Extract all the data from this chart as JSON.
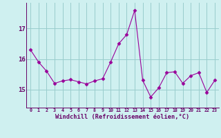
{
  "x": [
    0,
    1,
    2,
    3,
    4,
    5,
    6,
    7,
    8,
    9,
    10,
    11,
    12,
    13,
    14,
    15,
    16,
    17,
    18,
    19,
    20,
    21,
    22,
    23
  ],
  "y": [
    16.3,
    15.9,
    15.6,
    15.2,
    15.28,
    15.32,
    15.25,
    15.18,
    15.28,
    15.35,
    15.9,
    16.5,
    16.8,
    17.6,
    15.3,
    14.75,
    15.05,
    15.55,
    15.58,
    15.2,
    15.45,
    15.55,
    14.9,
    15.3
  ],
  "line_color": "#990099",
  "marker": "D",
  "marker_size": 2.5,
  "bg_color": "#cff0f0",
  "grid_color": "#99cccc",
  "xlabel": "Windchill (Refroidissement éolien,°C)",
  "xlabel_color": "#660066",
  "tick_color": "#660066",
  "yticks": [
    15,
    16,
    17
  ],
  "ylim": [
    14.4,
    17.85
  ],
  "xlim": [
    -0.5,
    23.5
  ],
  "xtick_labels": [
    "0",
    "1",
    "2",
    "3",
    "4",
    "5",
    "6",
    "7",
    "8",
    "9",
    "10",
    "11",
    "12",
    "13",
    "14",
    "15",
    "16",
    "17",
    "18",
    "19",
    "20",
    "21",
    "22",
    "23"
  ]
}
